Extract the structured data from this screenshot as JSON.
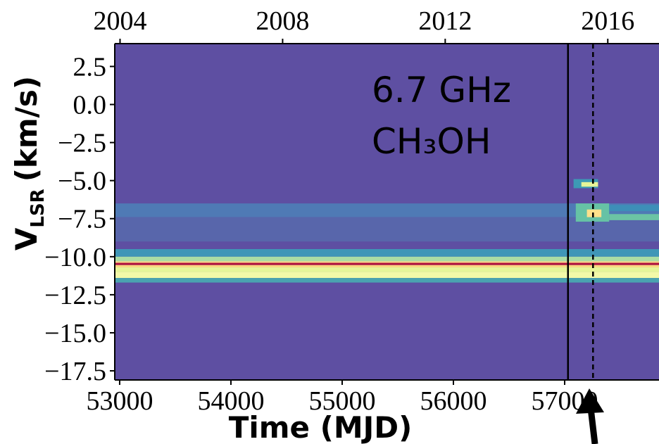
{
  "chart_data": {
    "type": "heatmap",
    "xlabel": "Time (MJD)",
    "ylabel": {
      "main": "V",
      "sub": "LSR",
      "unit": "(km/s)"
    },
    "annotations": [
      "6.7 GHz",
      "CH₃OH"
    ],
    "background": "#5e4fa2",
    "xlim": [
      52956,
      57848
    ],
    "xticks": [
      53000,
      54000,
      55000,
      56000,
      57000
    ],
    "x2lim": [
      2003.87,
      2017.26
    ],
    "x2ticks": [
      2004,
      2008,
      2012,
      2016
    ],
    "ylim": [
      -18.1,
      4.0
    ],
    "yticks": [
      2.5,
      {
        "value": 0,
        "label": "0.0"
      },
      {
        "value": -2.5,
        "label": "−2.5"
      },
      {
        "value": -5,
        "label": "−5.0"
      },
      {
        "value": -7.5,
        "label": "−7.5"
      },
      {
        "value": -10,
        "label": "−10.0"
      },
      {
        "value": -12.5,
        "label": "−12.5"
      },
      {
        "value": -15,
        "label": "−15.0"
      },
      {
        "value": -17.5,
        "label": "−17.5"
      }
    ],
    "bands": [
      {
        "x": [
          52956,
          57848
        ],
        "y": [
          -6.5,
          -7.4
        ],
        "color": "#4f7ab5"
      },
      {
        "x": [
          52956,
          57848
        ],
        "y": [
          -7.4,
          -9.0
        ],
        "color": "#5866ab"
      },
      {
        "x": [
          52956,
          57848
        ],
        "y": [
          -9.5,
          -10.0
        ],
        "color": "#3f96b7"
      },
      {
        "x": [
          52956,
          57848
        ],
        "y": [
          -10.0,
          -10.3
        ],
        "color": "#abdda4"
      },
      {
        "x": [
          52956,
          57848
        ],
        "y": [
          -10.3,
          -10.4
        ],
        "color": "#fee08b"
      },
      {
        "x": [
          52956,
          57848
        ],
        "y": [
          -10.4,
          -10.55
        ],
        "color": "#b0123f"
      },
      {
        "x": [
          52956,
          57848
        ],
        "y": [
          -10.55,
          -10.7
        ],
        "color": "#fdd97f"
      },
      {
        "x": [
          52956,
          57848
        ],
        "y": [
          -10.7,
          -11.0
        ],
        "color": "#e6f598"
      },
      {
        "x": [
          52956,
          57848
        ],
        "y": [
          -11.0,
          -11.4
        ],
        "color": "#f3f9a8"
      },
      {
        "x": [
          52956,
          57848
        ],
        "y": [
          -11.4,
          -11.7
        ],
        "color": "#4aa3b0"
      },
      {
        "x": [
          57080,
          57300
        ],
        "y": [
          -4.9,
          -5.5
        ],
        "color": "#3d9ab5"
      },
      {
        "x": [
          57150,
          57300
        ],
        "y": [
          -5.1,
          -5.4
        ],
        "color": "#e6f598"
      },
      {
        "x": [
          57100,
          57400
        ],
        "y": [
          -6.5,
          -7.7
        ],
        "color": "#66c2a5"
      },
      {
        "x": [
          57200,
          57330
        ],
        "y": [
          -6.9,
          -7.4
        ],
        "color": "#fee08b"
      },
      {
        "x": [
          57400,
          57848
        ],
        "y": [
          -6.6,
          -7.0
        ],
        "color": "#3d8fb8"
      },
      {
        "x": [
          57400,
          57848
        ],
        "y": [
          -7.2,
          -7.6
        ],
        "color": "#6cc4a4"
      }
    ],
    "vlines": [
      {
        "x": 57030,
        "style": "solid"
      },
      {
        "x": 57255,
        "style": "dashed"
      }
    ]
  }
}
